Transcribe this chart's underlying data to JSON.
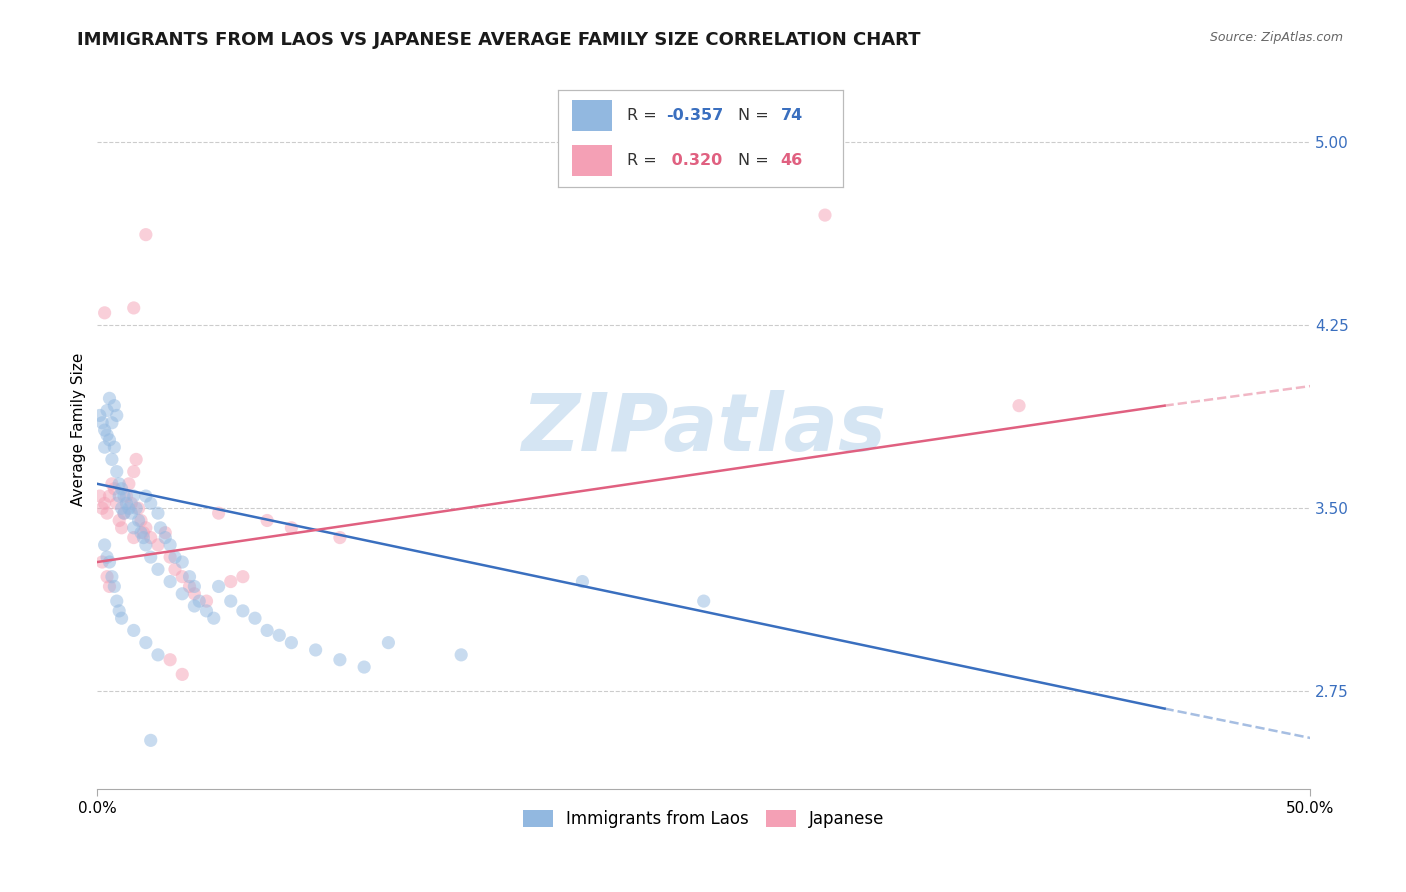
{
  "title": "IMMIGRANTS FROM LAOS VS JAPANESE AVERAGE FAMILY SIZE CORRELATION CHART",
  "source": "Source: ZipAtlas.com",
  "ylabel": "Average Family Size",
  "yticks": [
    2.75,
    3.5,
    4.25,
    5.0
  ],
  "xlim": [
    0.0,
    0.5
  ],
  "ylim": [
    2.35,
    5.3
  ],
  "watermark": "ZIPatlas",
  "blue_color": "#92b8e0",
  "pink_color": "#f4a0b5",
  "blue_line_color": "#3a6fbf",
  "pink_line_color": "#e06080",
  "blue_scatter": [
    [
      0.001,
      3.88
    ],
    [
      0.002,
      3.85
    ],
    [
      0.003,
      3.82
    ],
    [
      0.003,
      3.75
    ],
    [
      0.004,
      3.9
    ],
    [
      0.004,
      3.8
    ],
    [
      0.005,
      3.95
    ],
    [
      0.005,
      3.78
    ],
    [
      0.006,
      3.85
    ],
    [
      0.006,
      3.7
    ],
    [
      0.007,
      3.92
    ],
    [
      0.007,
      3.75
    ],
    [
      0.008,
      3.88
    ],
    [
      0.008,
      3.65
    ],
    [
      0.009,
      3.6
    ],
    [
      0.009,
      3.55
    ],
    [
      0.01,
      3.58
    ],
    [
      0.01,
      3.5
    ],
    [
      0.011,
      3.55
    ],
    [
      0.011,
      3.48
    ],
    [
      0.012,
      3.52
    ],
    [
      0.013,
      3.5
    ],
    [
      0.014,
      3.48
    ],
    [
      0.015,
      3.55
    ],
    [
      0.015,
      3.42
    ],
    [
      0.016,
      3.5
    ],
    [
      0.017,
      3.45
    ],
    [
      0.018,
      3.4
    ],
    [
      0.019,
      3.38
    ],
    [
      0.02,
      3.55
    ],
    [
      0.02,
      3.35
    ],
    [
      0.022,
      3.52
    ],
    [
      0.022,
      3.3
    ],
    [
      0.025,
      3.48
    ],
    [
      0.025,
      3.25
    ],
    [
      0.026,
      3.42
    ],
    [
      0.028,
      3.38
    ],
    [
      0.03,
      3.35
    ],
    [
      0.03,
      3.2
    ],
    [
      0.032,
      3.3
    ],
    [
      0.035,
      3.28
    ],
    [
      0.035,
      3.15
    ],
    [
      0.038,
      3.22
    ],
    [
      0.04,
      3.18
    ],
    [
      0.04,
      3.1
    ],
    [
      0.042,
      3.12
    ],
    [
      0.045,
      3.08
    ],
    [
      0.048,
      3.05
    ],
    [
      0.05,
      3.18
    ],
    [
      0.055,
      3.12
    ],
    [
      0.06,
      3.08
    ],
    [
      0.065,
      3.05
    ],
    [
      0.07,
      3.0
    ],
    [
      0.075,
      2.98
    ],
    [
      0.08,
      2.95
    ],
    [
      0.09,
      2.92
    ],
    [
      0.1,
      2.88
    ],
    [
      0.11,
      2.85
    ],
    [
      0.12,
      2.95
    ],
    [
      0.15,
      2.9
    ],
    [
      0.2,
      3.2
    ],
    [
      0.25,
      3.12
    ],
    [
      0.005,
      3.28
    ],
    [
      0.006,
      3.22
    ],
    [
      0.007,
      3.18
    ],
    [
      0.008,
      3.12
    ],
    [
      0.003,
      3.35
    ],
    [
      0.004,
      3.3
    ],
    [
      0.009,
      3.08
    ],
    [
      0.01,
      3.05
    ],
    [
      0.015,
      3.0
    ],
    [
      0.02,
      2.95
    ],
    [
      0.025,
      2.9
    ],
    [
      0.022,
      2.55
    ]
  ],
  "pink_scatter": [
    [
      0.001,
      3.55
    ],
    [
      0.002,
      3.5
    ],
    [
      0.003,
      3.52
    ],
    [
      0.004,
      3.48
    ],
    [
      0.005,
      3.55
    ],
    [
      0.006,
      3.6
    ],
    [
      0.007,
      3.58
    ],
    [
      0.008,
      3.52
    ],
    [
      0.009,
      3.45
    ],
    [
      0.01,
      3.42
    ],
    [
      0.011,
      3.48
    ],
    [
      0.012,
      3.55
    ],
    [
      0.013,
      3.6
    ],
    [
      0.014,
      3.52
    ],
    [
      0.015,
      3.65
    ],
    [
      0.015,
      3.38
    ],
    [
      0.016,
      3.7
    ],
    [
      0.017,
      3.5
    ],
    [
      0.018,
      3.45
    ],
    [
      0.019,
      3.4
    ],
    [
      0.02,
      3.42
    ],
    [
      0.022,
      3.38
    ],
    [
      0.025,
      3.35
    ],
    [
      0.028,
      3.4
    ],
    [
      0.03,
      3.3
    ],
    [
      0.032,
      3.25
    ],
    [
      0.035,
      3.22
    ],
    [
      0.038,
      3.18
    ],
    [
      0.04,
      3.15
    ],
    [
      0.045,
      3.12
    ],
    [
      0.05,
      3.48
    ],
    [
      0.055,
      3.2
    ],
    [
      0.06,
      3.22
    ],
    [
      0.07,
      3.45
    ],
    [
      0.08,
      3.42
    ],
    [
      0.1,
      3.38
    ],
    [
      0.003,
      4.3
    ],
    [
      0.02,
      4.62
    ],
    [
      0.015,
      4.32
    ],
    [
      0.002,
      3.28
    ],
    [
      0.004,
      3.22
    ],
    [
      0.005,
      3.18
    ],
    [
      0.3,
      4.7
    ],
    [
      0.38,
      3.92
    ],
    [
      0.03,
      2.88
    ],
    [
      0.035,
      2.82
    ]
  ],
  "blue_trendline": [
    [
      0.0,
      3.6
    ],
    [
      0.44,
      2.68
    ]
  ],
  "pink_trendline": [
    [
      0.0,
      3.28
    ],
    [
      0.44,
      3.92
    ]
  ],
  "blue_trendline_ext": [
    [
      0.44,
      2.68
    ],
    [
      0.52,
      2.52
    ]
  ],
  "pink_trendline_ext": [
    [
      0.44,
      3.92
    ],
    [
      0.5,
      4.0
    ]
  ],
  "background_color": "#ffffff",
  "grid_color": "#cccccc",
  "title_fontsize": 13,
  "axis_fontsize": 11,
  "tick_fontsize": 11,
  "marker_size": 90,
  "marker_alpha": 0.5,
  "line_width": 1.8
}
